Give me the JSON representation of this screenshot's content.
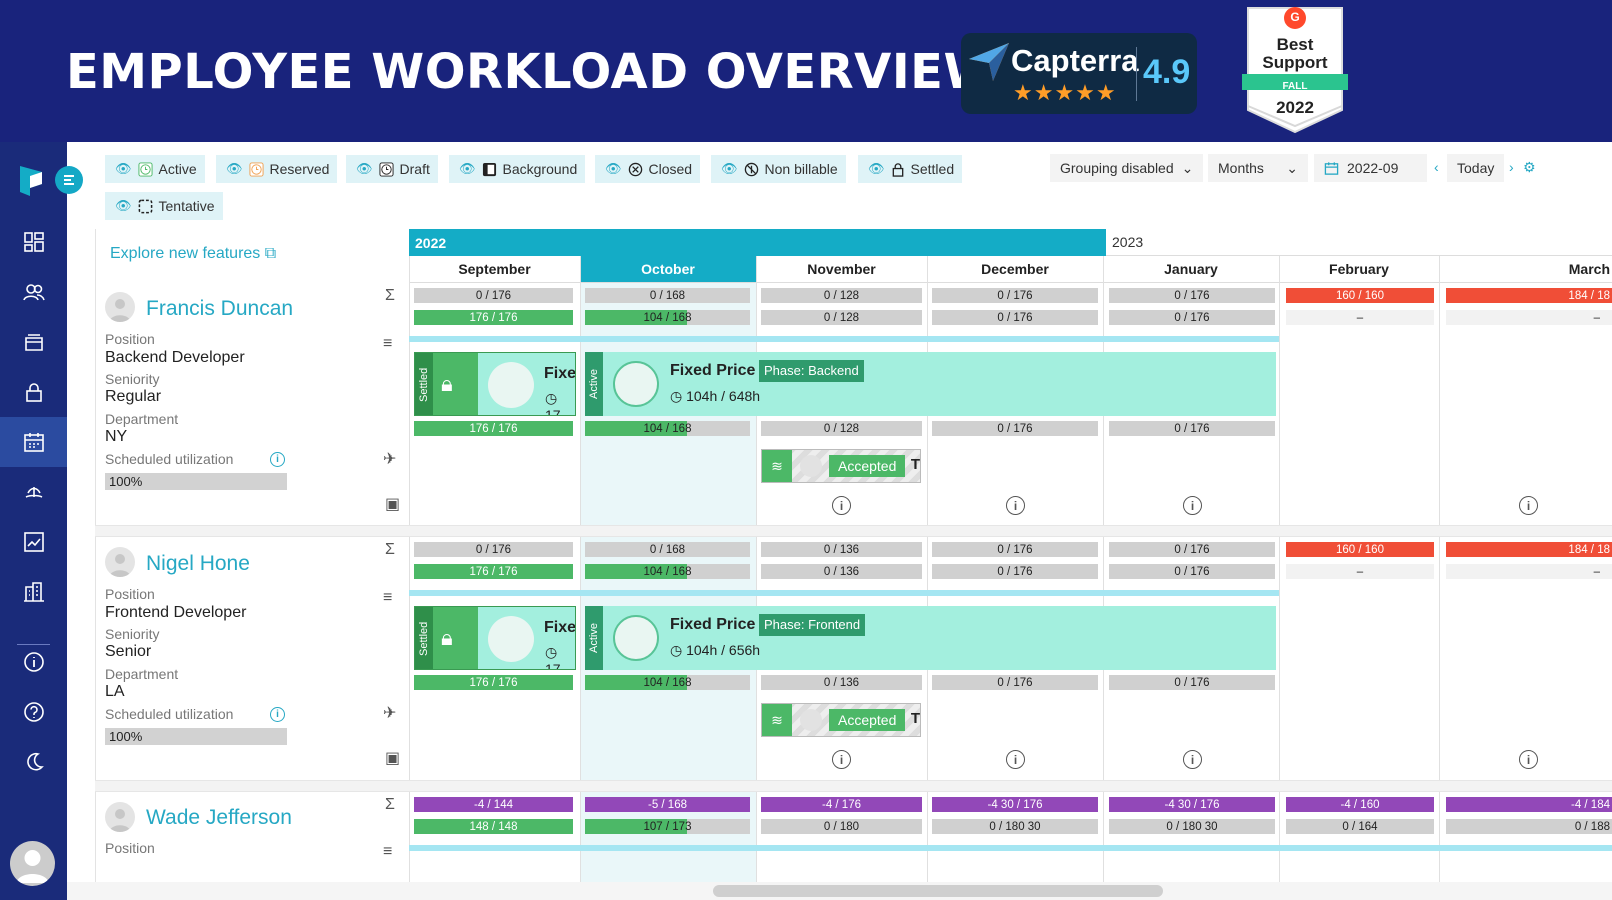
{
  "banner": {
    "title": "EMPLOYEE WORKLOAD OVERVIEW",
    "capterra": {
      "name": "Capterra",
      "score": "4.9",
      "stars": "★★★★★"
    },
    "g2": {
      "logo": "G",
      "line1": "Best",
      "line2": "Support",
      "season": "FALL",
      "year": "2022"
    }
  },
  "colors": {
    "brand_navy": "#19237c",
    "accent_teal": "#14acc6",
    "capacity_green": "#4cb867",
    "over_red": "#f04e37",
    "negative_purple": "#9248b8",
    "project_mint": "#a3efde"
  },
  "nav": {
    "icons": [
      "logo-icon",
      "dashboard-icon",
      "people-icon",
      "projects-icon",
      "lock-icon",
      "calendar-icon",
      "vacation-icon",
      "reports-icon",
      "building-icon",
      "info-icon",
      "help-icon",
      "dark-mode-icon",
      "user-avatar"
    ]
  },
  "toolbar": {
    "filters": [
      {
        "label": "Active",
        "icon": "clock-icon"
      },
      {
        "label": "Reserved",
        "icon": "clock-icon"
      },
      {
        "label": "Draft",
        "icon": "draft-icon"
      },
      {
        "label": "Background",
        "icon": "background-icon"
      },
      {
        "label": "Closed",
        "icon": "closed-icon"
      },
      {
        "label": "Non billable",
        "icon": "non-billable-icon"
      },
      {
        "label": "Settled",
        "icon": "lock-icon"
      },
      {
        "label": "Tentative",
        "icon": "tentative-icon"
      }
    ],
    "grouping": "Grouping disabled",
    "scale": "Months",
    "date": "2022-09",
    "today": "Today"
  },
  "explore": "Explore new features",
  "years": [
    {
      "label": "2022"
    },
    {
      "label": "2023"
    }
  ],
  "months": [
    "September",
    "October",
    "November",
    "December",
    "January",
    "February",
    "March"
  ],
  "current_month": "October",
  "labels": {
    "position": "Position",
    "seniority": "Seniority",
    "department": "Department",
    "utilization": "Scheduled utilization"
  },
  "employees": [
    {
      "name": "Francis Duncan",
      "position": "Backend Developer",
      "seniority": "Regular",
      "department": "NY",
      "utilization": "100%",
      "summary": [
        "0 / 176",
        "0 / 168",
        "0 / 128",
        "0 / 176",
        "0 / 176",
        "160 / 160",
        "184 / 18"
      ],
      "billable": [
        "176 / 176",
        "104 / 168",
        "0 / 128",
        "0 / 176",
        "0 / 176",
        "–",
        "–"
      ],
      "capacity": [
        "176 / 176",
        "104 / 168",
        "0 / 128",
        "0 / 176",
        "0 / 176"
      ],
      "settled_project": {
        "tag": "Settled",
        "title": "Fixe",
        "hours": "17"
      },
      "active_project": {
        "tag": "Active",
        "title": "Fixed Price",
        "phase": "Phase: Backend",
        "hours": "104h / 648h"
      },
      "accepted": {
        "label": "Accepted",
        "trail": "T"
      }
    },
    {
      "name": "Nigel Hone",
      "position": "Frontend Developer",
      "seniority": "Senior",
      "department": "LA",
      "utilization": "100%",
      "summary": [
        "0 / 176",
        "0 / 168",
        "0 / 136",
        "0 / 176",
        "0 / 176",
        "160 / 160",
        "184 / 18"
      ],
      "billable": [
        "176 / 176",
        "104 / 168",
        "0 / 136",
        "0 / 176",
        "0 / 176",
        "–",
        "–"
      ],
      "capacity": [
        "176 / 176",
        "104 / 168",
        "0 / 136",
        "0 / 176",
        "0 / 176"
      ],
      "settled_project": {
        "tag": "Settled",
        "title": "Fixe",
        "hours": "17"
      },
      "active_project": {
        "tag": "Active",
        "title": "Fixed Price",
        "phase": "Phase: Frontend",
        "hours": "104h / 656h"
      },
      "accepted": {
        "label": "Accepted",
        "trail": "T"
      }
    },
    {
      "name": "Wade Jefferson",
      "position_label": "Position",
      "summary": [
        "-4 / 144",
        "-5 / 168",
        "-4 / 176",
        "-4 30 / 176",
        "-4 30 / 176",
        "-4 / 160",
        "-4 / 184"
      ],
      "billable": [
        "148 / 148",
        "107 / 173",
        "0 / 180",
        "0 / 180 30",
        "0 / 180 30",
        "0 / 164",
        "0 / 188"
      ]
    }
  ]
}
